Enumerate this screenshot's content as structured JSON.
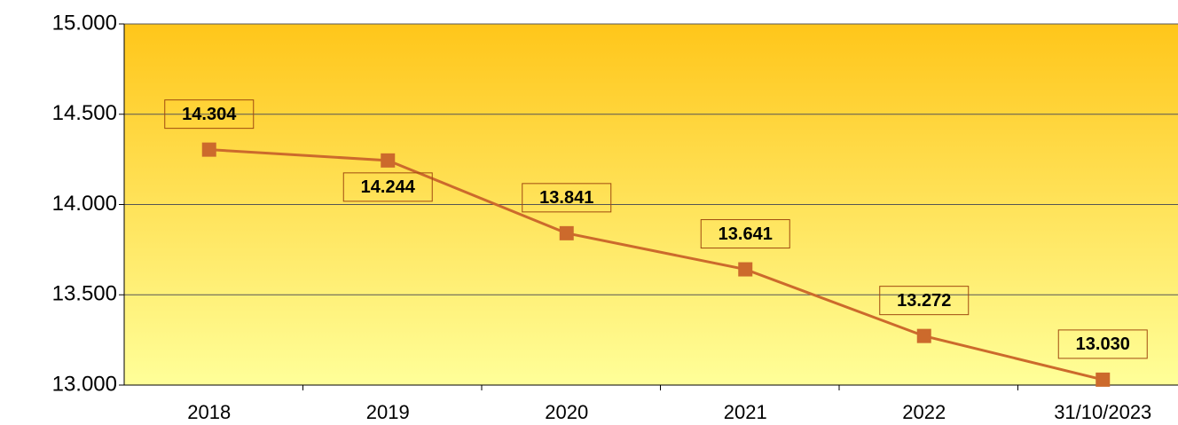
{
  "chart_data": {
    "type": "line",
    "categories": [
      "2018",
      "2019",
      "2020",
      "2021",
      "2022",
      "31/10/2023"
    ],
    "series": [
      {
        "name": "",
        "color": "#cc6a2c",
        "values": [
          14304,
          14244,
          13841,
          13641,
          13272,
          13030
        ],
        "value_labels": [
          "14.304",
          "14.244",
          "13.841",
          "13.641",
          "13.272",
          "13.030"
        ]
      }
    ],
    "ylim": [
      13000,
      15000
    ],
    "yticks": [
      {
        "value": 13000,
        "label": "13.000"
      },
      {
        "value": 13500,
        "label": "13.500"
      },
      {
        "value": 14000,
        "label": "14.000"
      },
      {
        "value": 14500,
        "label": "14.500"
      },
      {
        "value": 15000,
        "label": "15.000"
      }
    ],
    "grid": true
  }
}
